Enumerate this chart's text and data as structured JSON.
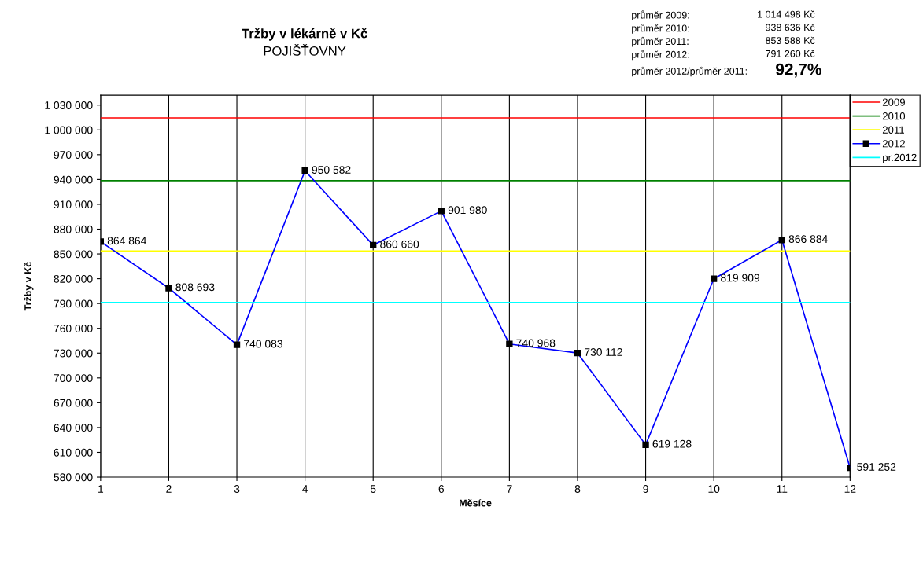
{
  "chart_data": {
    "type": "line",
    "title": "Tržby v lékárně v Kč",
    "subtitle": "POJIŠŤOVNY",
    "xlabel": "Měsíce",
    "ylabel": "Tržby v Kč",
    "x": [
      1,
      2,
      3,
      4,
      5,
      6,
      7,
      8,
      9,
      10,
      11,
      12
    ],
    "series": [
      {
        "name": "2009",
        "color": "#ff0000",
        "values": [
          1014498,
          1014498,
          1014498,
          1014498,
          1014498,
          1014498,
          1014498,
          1014498,
          1014498,
          1014498,
          1014498,
          1014498
        ],
        "marker": "none"
      },
      {
        "name": "2010",
        "color": "#008000",
        "values": [
          938636,
          938636,
          938636,
          938636,
          938636,
          938636,
          938636,
          938636,
          938636,
          938636,
          938636,
          938636
        ],
        "marker": "none"
      },
      {
        "name": "2011",
        "color": "#ffff00",
        "values": [
          853588,
          853588,
          853588,
          853588,
          853588,
          853588,
          853588,
          853588,
          853588,
          853588,
          853588,
          853588
        ],
        "marker": "none"
      },
      {
        "name": "2012",
        "color": "#0000ff",
        "values": [
          864864,
          808693,
          740083,
          950582,
          860660,
          901980,
          740968,
          730112,
          619128,
          819909,
          866884,
          591252
        ],
        "value_labels": [
          "864 864",
          "808 693",
          "740 083",
          "950 582",
          "860 660",
          "901 980",
          "740 968",
          "730 112",
          "619 128",
          "819 909",
          "866 884",
          "591 252"
        ]
      },
      {
        "name": "pr.2012",
        "color": "#00ffff",
        "values": [
          791260,
          791260,
          791260,
          791260,
          791260,
          791260,
          791260,
          791260,
          791260,
          791260,
          791260,
          791260
        ],
        "marker": "none"
      }
    ],
    "annotations": [
      "průměr 2009:",
      "1 014 498 Kč",
      "průměr 2010:",
      "938 636 Kč",
      "průměr 2011:",
      "853 588 Kč",
      "průměr 2012:",
      "791 260 Kč",
      "průměr 2012/průměr 2011:",
      "92,7%"
    ],
    "xlim": [
      1,
      12
    ],
    "xticks": [
      1,
      2,
      3,
      4,
      5,
      6,
      7,
      8,
      9,
      10,
      11,
      12
    ],
    "ylim": [
      580000,
      1042000
    ],
    "yticks": [
      {
        "value": 580000,
        "label": "580 000"
      },
      {
        "value": 610000,
        "label": "610 000"
      },
      {
        "value": 640000,
        "label": "640 000"
      },
      {
        "value": 670000,
        "label": "670 000"
      },
      {
        "value": 700000,
        "label": "700 000"
      },
      {
        "value": 730000,
        "label": "730 000"
      },
      {
        "value": 760000,
        "label": "760 000"
      },
      {
        "value": 790000,
        "label": "790 000"
      },
      {
        "value": 820000,
        "label": "820 000"
      },
      {
        "value": 850000,
        "label": "850 000"
      },
      {
        "value": 880000,
        "label": "880 000"
      },
      {
        "value": 910000,
        "label": "910 000"
      },
      {
        "value": 940000,
        "label": "940 000"
      },
      {
        "value": 970000,
        "label": "970 000"
      },
      {
        "value": 1000000,
        "label": "1 000 000"
      },
      {
        "value": 1030000,
        "label": "1 030 000"
      }
    ],
    "grid": "x",
    "legend": "top right",
    "marker": "square",
    "line_style": "solid"
  }
}
